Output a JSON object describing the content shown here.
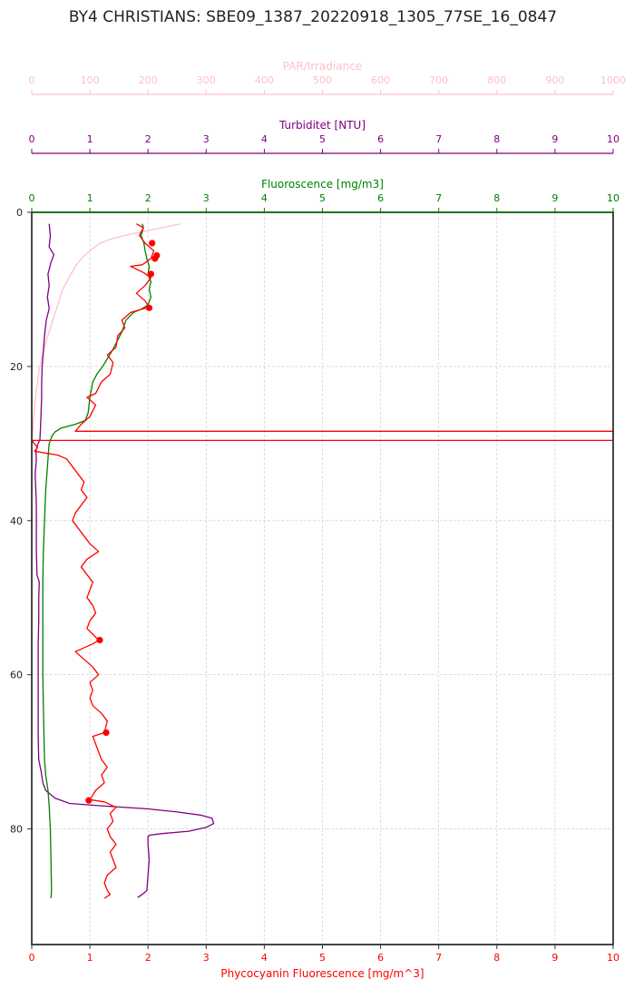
{
  "title": "BY4 CHRISTIANS: SBE09_1387_20220918_1305_77SE_16_0847",
  "chart_data": {
    "type": "line",
    "y_axis": {
      "ylim": [
        95,
        0
      ],
      "ticks": [
        0,
        20,
        40,
        60,
        80
      ]
    },
    "x_axes": [
      {
        "id": "par",
        "label": "PAR/Irradiance",
        "color": "#ffc0cb",
        "lim": [
          0,
          1000
        ],
        "ticks": [
          0,
          100,
          200,
          300,
          400,
          500,
          600,
          700,
          800,
          900,
          1000
        ]
      },
      {
        "id": "turb",
        "label": "Turbiditet [NTU]",
        "color": "#800080",
        "lim": [
          0,
          10
        ],
        "ticks": [
          0,
          1,
          2,
          3,
          4,
          5,
          6,
          7,
          8,
          9,
          10
        ]
      },
      {
        "id": "fluor",
        "label": "Fluoroscence [mg/m3]",
        "color": "#008000",
        "lim": [
          0,
          10
        ],
        "ticks": [
          0,
          1,
          2,
          3,
          4,
          5,
          6,
          7,
          8,
          9,
          10
        ]
      },
      {
        "id": "phyco",
        "label": "Phycocyanin Fluorescence [mg/m^3]",
        "color": "#ff0000",
        "lim": [
          0,
          10
        ],
        "ticks": [
          0,
          1,
          2,
          3,
          4,
          5,
          6,
          7,
          8,
          9,
          10
        ]
      }
    ],
    "grid": true,
    "series": [
      {
        "axis": "par",
        "color": "#ffc0cb",
        "points": [
          [
            255,
            1.5
          ],
          [
            225,
            2
          ],
          [
            190,
            2.5
          ],
          [
            160,
            3
          ],
          [
            135,
            3.5
          ],
          [
            118,
            4
          ],
          [
            103,
            4.8
          ],
          [
            88,
            5.8
          ],
          [
            75,
            7
          ],
          [
            64,
            8.5
          ],
          [
            53,
            10
          ],
          [
            45,
            12
          ],
          [
            36,
            14
          ],
          [
            28,
            16
          ],
          [
            20,
            18
          ],
          [
            14,
            20
          ],
          [
            8,
            23
          ],
          [
            4,
            26
          ],
          [
            2,
            28
          ],
          [
            0,
            30
          ]
        ]
      },
      {
        "axis": "turb",
        "color": "#800080",
        "points": [
          [
            0.3,
            1.5
          ],
          [
            0.32,
            3
          ],
          [
            0.3,
            4.5
          ],
          [
            0.38,
            5.5
          ],
          [
            0.33,
            6.5
          ],
          [
            0.28,
            8
          ],
          [
            0.3,
            9.5
          ],
          [
            0.27,
            11
          ],
          [
            0.3,
            12.5
          ],
          [
            0.25,
            14
          ],
          [
            0.22,
            16
          ],
          [
            0.2,
            18
          ],
          [
            0.18,
            20
          ],
          [
            0.17,
            22
          ],
          [
            0.17,
            24
          ],
          [
            0.16,
            26
          ],
          [
            0.15,
            28
          ],
          [
            0.14,
            29.5
          ],
          [
            0.1,
            30.2
          ],
          [
            0.07,
            31
          ],
          [
            0.08,
            32
          ],
          [
            0.06,
            34
          ],
          [
            0.07,
            36
          ],
          [
            0.08,
            38
          ],
          [
            0.08,
            40
          ],
          [
            0.08,
            44
          ],
          [
            0.09,
            47
          ],
          [
            0.13,
            48
          ],
          [
            0.12,
            50
          ],
          [
            0.12,
            53
          ],
          [
            0.11,
            56
          ],
          [
            0.11,
            60
          ],
          [
            0.11,
            64
          ],
          [
            0.11,
            68
          ],
          [
            0.12,
            71
          ],
          [
            0.16,
            72.5
          ],
          [
            0.19,
            74
          ],
          [
            0.24,
            75
          ],
          [
            0.4,
            76
          ],
          [
            0.65,
            76.7
          ],
          [
            1.2,
            77
          ],
          [
            2.0,
            77.4
          ],
          [
            2.5,
            77.8
          ],
          [
            2.9,
            78.2
          ],
          [
            3.1,
            78.6
          ],
          [
            3.13,
            79.3
          ],
          [
            3.0,
            79.8
          ],
          [
            2.7,
            80.3
          ],
          [
            2.25,
            80.6
          ],
          [
            2.03,
            80.8
          ],
          [
            2.0,
            81
          ],
          [
            2.0,
            82
          ],
          [
            2.02,
            84
          ],
          [
            2.0,
            86
          ],
          [
            1.98,
            88
          ],
          [
            1.9,
            88.5
          ],
          [
            1.82,
            88.9
          ]
        ]
      },
      {
        "axis": "fluor",
        "color": "#008000",
        "points": [
          [
            1.9,
            1.5
          ],
          [
            1.92,
            2
          ],
          [
            1.88,
            3
          ],
          [
            1.93,
            4
          ],
          [
            1.95,
            5
          ],
          [
            1.98,
            6
          ],
          [
            2.02,
            7
          ],
          [
            2.0,
            8
          ],
          [
            2.05,
            9
          ],
          [
            2.02,
            10
          ],
          [
            2.05,
            11
          ],
          [
            2.0,
            12
          ],
          [
            1.9,
            12.5
          ],
          [
            1.75,
            13
          ],
          [
            1.62,
            14
          ],
          [
            1.55,
            15.5
          ],
          [
            1.45,
            17
          ],
          [
            1.38,
            18
          ],
          [
            1.3,
            19
          ],
          [
            1.22,
            20
          ],
          [
            1.12,
            21
          ],
          [
            1.05,
            22
          ],
          [
            1.0,
            24
          ],
          [
            0.97,
            26
          ],
          [
            0.92,
            27
          ],
          [
            0.75,
            27.5
          ],
          [
            0.5,
            28
          ],
          [
            0.4,
            28.5
          ],
          [
            0.35,
            29
          ],
          [
            0.3,
            30
          ],
          [
            0.28,
            32
          ],
          [
            0.26,
            34
          ],
          [
            0.24,
            36
          ],
          [
            0.22,
            40
          ],
          [
            0.2,
            44
          ],
          [
            0.19,
            48
          ],
          [
            0.19,
            52
          ],
          [
            0.19,
            56
          ],
          [
            0.19,
            60
          ],
          [
            0.2,
            64
          ],
          [
            0.21,
            68
          ],
          [
            0.22,
            71
          ],
          [
            0.24,
            73
          ],
          [
            0.28,
            75
          ],
          [
            0.3,
            77
          ],
          [
            0.32,
            80
          ],
          [
            0.33,
            84
          ],
          [
            0.34,
            88
          ],
          [
            0.33,
            89
          ]
        ]
      },
      {
        "axis": "phyco",
        "color": "#ff0000",
        "points": [
          [
            1.8,
            1.5
          ],
          [
            1.92,
            2
          ],
          [
            1.85,
            3
          ],
          [
            1.95,
            4
          ],
          [
            2.1,
            5
          ],
          [
            2.05,
            6
          ],
          [
            1.9,
            6.8
          ],
          [
            1.7,
            7
          ],
          [
            1.92,
            7.8
          ],
          [
            2.05,
            8.5
          ],
          [
            1.95,
            9.5
          ],
          [
            1.8,
            10.5
          ],
          [
            1.95,
            11.5
          ],
          [
            2.02,
            12.3
          ],
          [
            1.7,
            13
          ],
          [
            1.55,
            14
          ],
          [
            1.6,
            15
          ],
          [
            1.48,
            16
          ],
          [
            1.45,
            17.5
          ],
          [
            1.3,
            18.5
          ],
          [
            1.4,
            19.5
          ],
          [
            1.35,
            21
          ],
          [
            1.2,
            22
          ],
          [
            1.1,
            23.5
          ],
          [
            0.95,
            24
          ],
          [
            1.1,
            25
          ],
          [
            1.0,
            26.5
          ],
          [
            0.85,
            27.5
          ],
          [
            0.75,
            28.4
          ],
          [
            10,
            28.4
          ],
          [
            10,
            29.6
          ],
          [
            0,
            29.6
          ],
          [
            0.1,
            30.5
          ],
          [
            0.05,
            31
          ],
          [
            0.45,
            31.5
          ],
          [
            0.6,
            32
          ],
          [
            0.7,
            33
          ],
          [
            0.8,
            34
          ],
          [
            0.9,
            35
          ],
          [
            0.85,
            36
          ],
          [
            0.95,
            37
          ],
          [
            0.85,
            38
          ],
          [
            0.75,
            39
          ],
          [
            0.7,
            40
          ],
          [
            0.8,
            41
          ],
          [
            0.9,
            42
          ],
          [
            1.0,
            43
          ],
          [
            1.15,
            44
          ],
          [
            0.95,
            45
          ],
          [
            0.85,
            46
          ],
          [
            0.95,
            47
          ],
          [
            1.05,
            48
          ],
          [
            1.0,
            49
          ],
          [
            0.95,
            50
          ],
          [
            1.05,
            51
          ],
          [
            1.1,
            52
          ],
          [
            1.0,
            53
          ],
          [
            0.95,
            54
          ],
          [
            1.15,
            55.5
          ],
          [
            1.05,
            56
          ],
          [
            0.75,
            57
          ],
          [
            0.9,
            58
          ],
          [
            1.05,
            59
          ],
          [
            1.15,
            60
          ],
          [
            1.0,
            61
          ],
          [
            1.05,
            62
          ],
          [
            1.0,
            63
          ],
          [
            1.05,
            64
          ],
          [
            1.2,
            65
          ],
          [
            1.3,
            66
          ],
          [
            1.25,
            67.5
          ],
          [
            1.05,
            68
          ],
          [
            1.1,
            69
          ],
          [
            1.15,
            70
          ],
          [
            1.2,
            71
          ],
          [
            1.3,
            72
          ],
          [
            1.2,
            73
          ],
          [
            1.25,
            74
          ],
          [
            1.1,
            75
          ],
          [
            1.0,
            76.2
          ],
          [
            1.25,
            76.5
          ],
          [
            1.45,
            77.2
          ],
          [
            1.35,
            78
          ],
          [
            1.4,
            79
          ],
          [
            1.3,
            80
          ],
          [
            1.35,
            81
          ],
          [
            1.45,
            82
          ],
          [
            1.35,
            83
          ],
          [
            1.4,
            84
          ],
          [
            1.45,
            85
          ],
          [
            1.3,
            86
          ],
          [
            1.25,
            87
          ],
          [
            1.3,
            88
          ],
          [
            1.35,
            88.5
          ],
          [
            1.25,
            89
          ]
        ]
      }
    ],
    "markers": {
      "axis": "phyco",
      "color": "#ff0000",
      "points": [
        [
          2.07,
          4
        ],
        [
          2.15,
          5.6
        ],
        [
          2.12,
          6
        ],
        [
          2.05,
          8
        ],
        [
          2.02,
          12.4
        ],
        [
          1.17,
          55.5
        ],
        [
          1.28,
          67.5
        ],
        [
          0.98,
          76.3
        ]
      ]
    }
  }
}
